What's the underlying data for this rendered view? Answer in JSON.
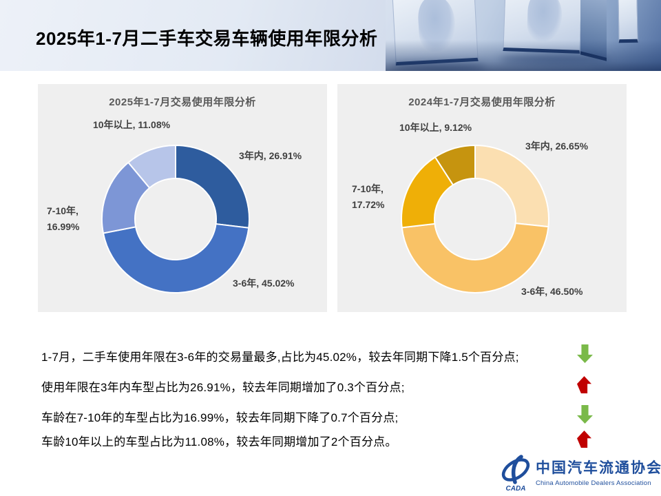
{
  "page_title": "2025年1-7月二手车交易车辆使用年限分析",
  "chart_data": [
    {
      "type": "pie",
      "subtype": "donut",
      "title": "2025年1-7月交易使用年限分析",
      "categories": [
        "3年内",
        "3-6年",
        "7-10年",
        "10年以上"
      ],
      "values": [
        26.91,
        45.02,
        16.99,
        11.08
      ],
      "unit": "%",
      "colors": [
        "#2e5c9e",
        "#4472c4",
        "#7d96d6",
        "#b7c5e9"
      ],
      "start_angle": 0,
      "direction": "clockwise",
      "legend_position": "data-labels"
    },
    {
      "type": "pie",
      "subtype": "donut",
      "title": "2024年1-7月交易使用年限分析",
      "categories": [
        "3年内",
        "3-6年",
        "7-10年",
        "10年以上"
      ],
      "values": [
        26.65,
        46.5,
        17.72,
        9.12
      ],
      "unit": "%",
      "colors": [
        "#fbdfb1",
        "#f9c266",
        "#efaf07",
        "#c6940f"
      ],
      "start_angle": 0,
      "direction": "clockwise",
      "legend_position": "data-labels"
    }
  ],
  "left_chart": {
    "title": "2025年1-7月交易使用年限分析",
    "label_top": "10年以上, 11.08%",
    "label_right": "3年内, 26.91%",
    "label_left_line1": "7-10年,",
    "label_left_line2": "16.99%",
    "label_bottom": "3-6年, 45.02%"
  },
  "right_chart": {
    "title": "2024年1-7月交易使用年限分析",
    "label_top": "10年以上, 9.12%",
    "label_right": "3年内, 26.65%",
    "label_left_line1": "7-10年,",
    "label_left_line2": "17.72%",
    "label_bottom": "3-6年, 46.50%"
  },
  "bullets": [
    {
      "text": "1-7月，二手车使用年限在3-6年的交易量最多,占比为45.02%，较去年同期下降1.5个百分点;",
      "trend": "down"
    },
    {
      "text": "使用年限在3年内车型占比为26.91%，较去年同期增加了0.3个百分点;",
      "trend": "up"
    },
    {
      "text": "车龄在7-10年的车型占比为16.99%，较去年同期下降了0.7个百分点;",
      "trend": "down"
    },
    {
      "text": "车龄10年以上的车型占比为11.08%，较去年同期增加了2个百分点。",
      "trend": "up"
    }
  ],
  "trend_colors": {
    "up": "#c00000",
    "down": "#7ab949"
  },
  "logo": {
    "cada": "CADA",
    "name_zh": "中国汽车流通协会",
    "name_en": "China Automobile Dealers Association",
    "brand_color": "#1f4e9c"
  }
}
